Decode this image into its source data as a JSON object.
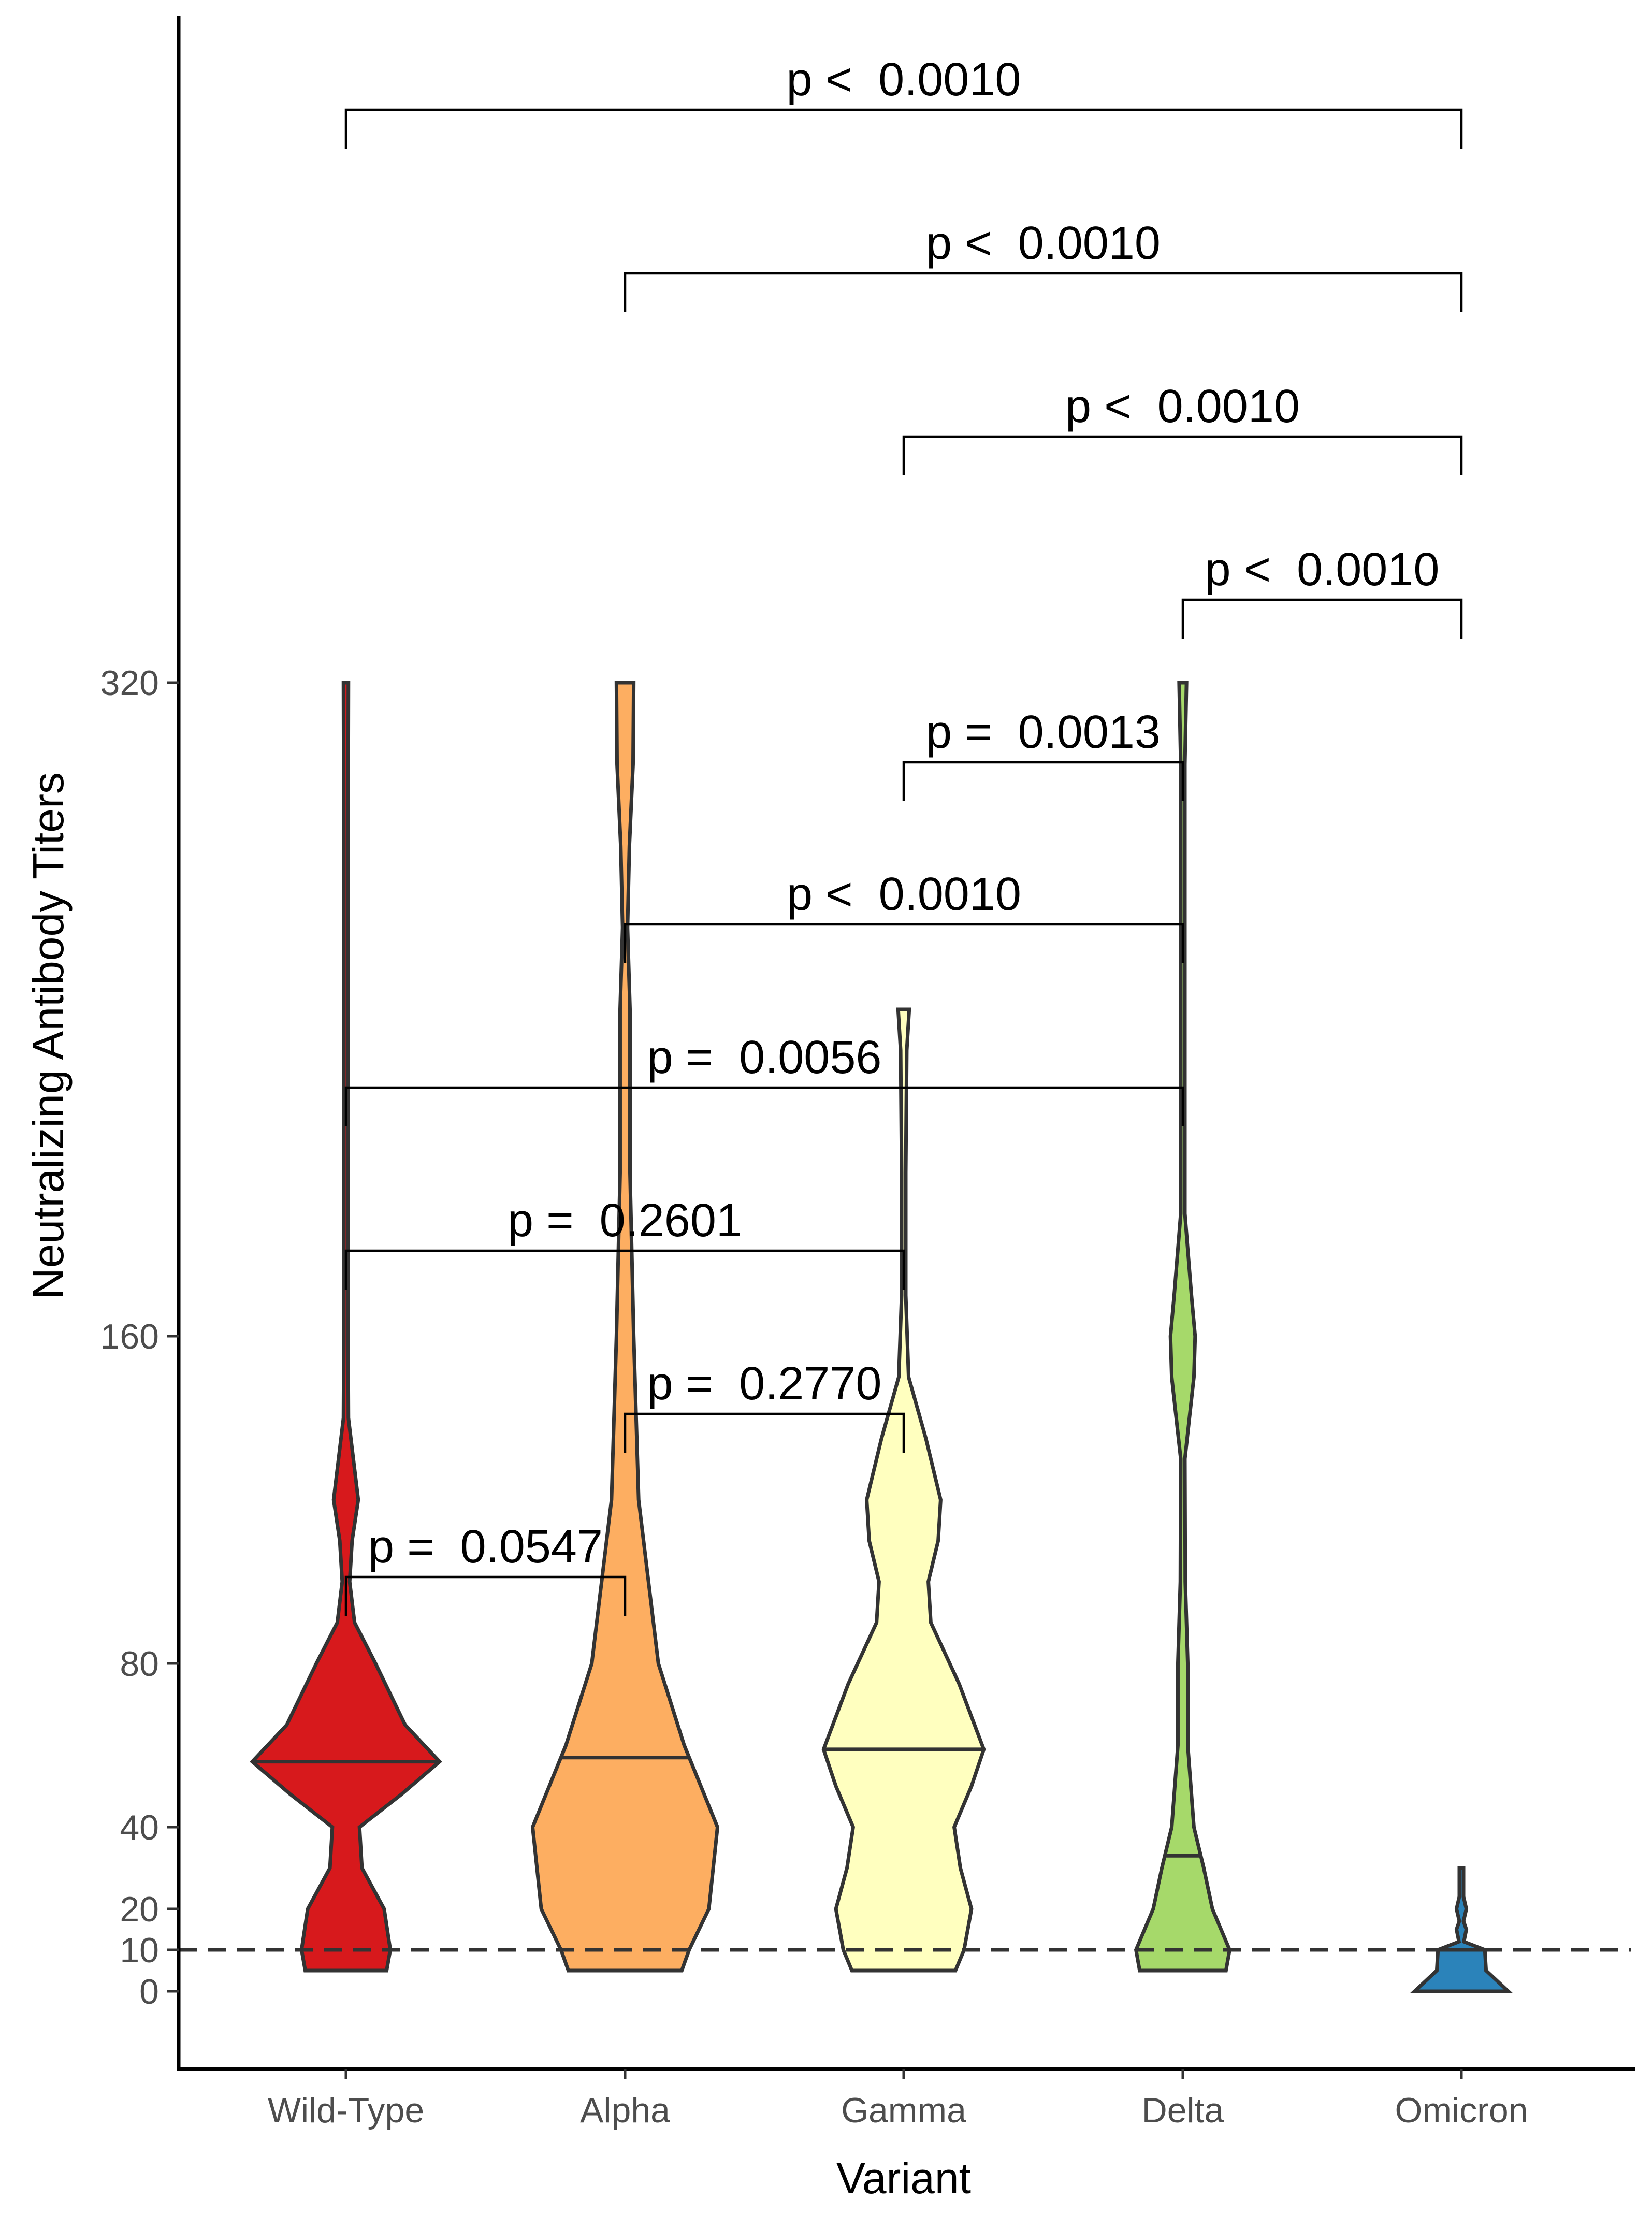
{
  "chart_data": {
    "type": "violin",
    "xlabel": "Variant",
    "ylabel": "Neutralizing Antibody Titers",
    "categories": [
      "Wild-Type",
      "Alpha",
      "Gamma",
      "Delta",
      "Omicron"
    ],
    "y_ticks": [
      0,
      10,
      20,
      40,
      80,
      160,
      320
    ],
    "y_scale": "square-root-like (as printed: 0, 10, 20, 40, 80, 160, 320)",
    "ylim": [
      -5,
      320
    ],
    "reference_line": {
      "y": 10,
      "style": "dashed"
    },
    "grid": false,
    "legend": "none",
    "series": [
      {
        "category": "Wild-Type",
        "color": "#d7191c",
        "median": 56,
        "min": 5,
        "max": 320,
        "density_peaks": [
          56,
          120
        ]
      },
      {
        "category": "Alpha",
        "color": "#fdae61",
        "median": 57,
        "min": 5,
        "max": 320,
        "density_peaks": [
          40,
          320
        ]
      },
      {
        "category": "Gamma",
        "color": "#ffffbf",
        "median": 59,
        "min": 5,
        "max": 240,
        "density_peaks": [
          20,
          59,
          120
        ]
      },
      {
        "category": "Delta",
        "color": "#a6d96a",
        "median": 33,
        "min": 5,
        "max": 320,
        "density_peaks": [
          10,
          160
        ]
      },
      {
        "category": "Omicron",
        "color": "#2b83ba",
        "median": 10,
        "min": 5,
        "max": 30,
        "density_peaks": [
          10,
          20
        ]
      }
    ],
    "comparisons": [
      {
        "from": "Wild-Type",
        "to": "Alpha",
        "label": "p =  0.0547"
      },
      {
        "from": "Alpha",
        "to": "Gamma",
        "label": "p =  0.2770"
      },
      {
        "from": "Wild-Type",
        "to": "Gamma",
        "label": "p =  0.2601"
      },
      {
        "from": "Wild-Type",
        "to": "Delta",
        "label": "p =  0.0056"
      },
      {
        "from": "Alpha",
        "to": "Delta",
        "label": "p <  0.0010"
      },
      {
        "from": "Gamma",
        "to": "Delta",
        "label": "p =  0.0013"
      },
      {
        "from": "Delta",
        "to": "Omicron",
        "label": "p <  0.0010"
      },
      {
        "from": "Gamma",
        "to": "Omicron",
        "label": "p <  0.0010"
      },
      {
        "from": "Alpha",
        "to": "Omicron",
        "label": "p <  0.0010"
      },
      {
        "from": "Wild-Type",
        "to": "Omicron",
        "label": "p <  0.0010"
      }
    ]
  }
}
